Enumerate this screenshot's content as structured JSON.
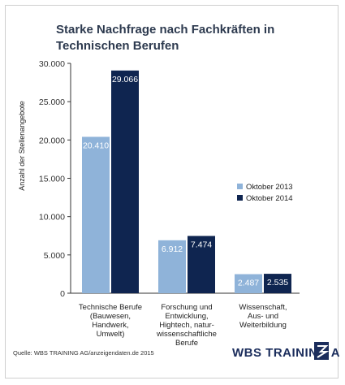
{
  "chart_data": {
    "type": "bar",
    "title_lines": [
      "Starke Nachfrage nach Fachkräften in",
      "Technischen Berufen"
    ],
    "ylabel": "Anzahl der Stellenangebote",
    "xlabel": "",
    "ylim": [
      0,
      30000
    ],
    "yticks": [
      0,
      5000,
      10000,
      15000,
      20000,
      25000,
      30000
    ],
    "ytick_labels": [
      "0",
      "5.000",
      "10.000",
      "15.000",
      "20.000",
      "25.000",
      "30.000"
    ],
    "categories": [
      [
        "Technische Berufe",
        "(Bauwesen,",
        "Handwerk,",
        "Umwelt)"
      ],
      [
        "Forschung und",
        "Entwicklung,",
        "Hightech, natur-",
        "wissenschaftliche",
        "Berufe"
      ],
      [
        "Wissenschaft,",
        "Aus- und",
        "Weiterbildung"
      ]
    ],
    "series": [
      {
        "name": "Oktober 2013",
        "color": "#8fb3d9",
        "values": [
          20410,
          6912,
          2487
        ],
        "labels": [
          "20.410",
          "6.912",
          "2.487"
        ]
      },
      {
        "name": "Oktober 2014",
        "color": "#0f2550",
        "values": [
          29066,
          7474,
          2535
        ],
        "labels": [
          "29.066",
          "7.474",
          "2.535"
        ]
      }
    ],
    "legend_position": "right",
    "grid": false
  },
  "footer": {
    "source": "Quelle: WBS TRAINING AG/anzeigendaten.de 2015",
    "logo_text": "WBS TRAINING AG"
  }
}
